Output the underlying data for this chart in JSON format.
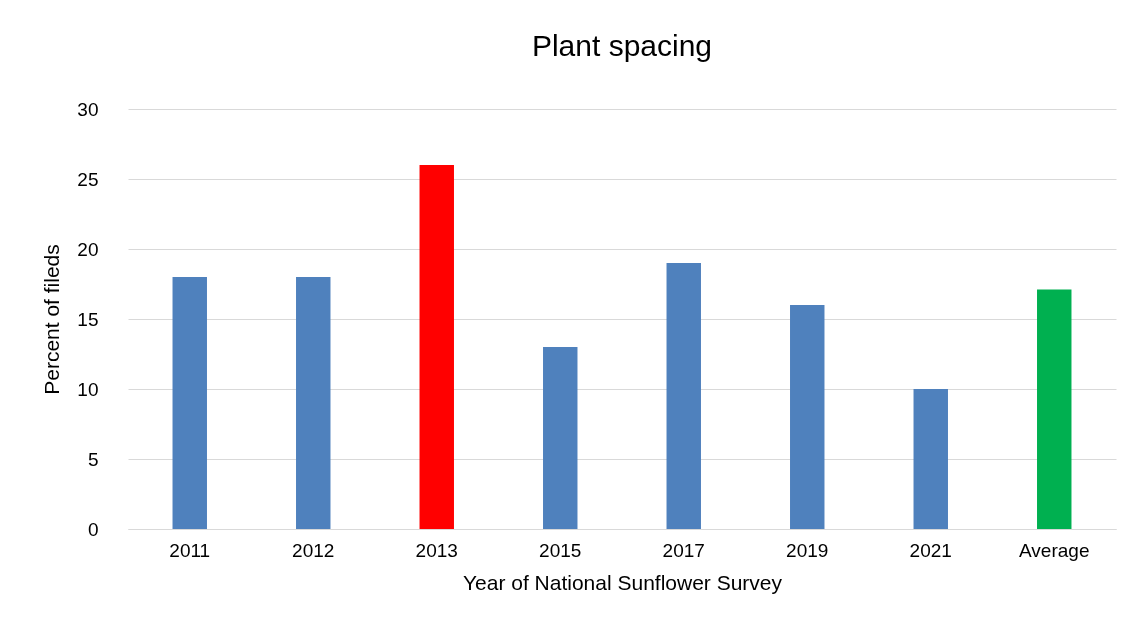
{
  "chart_data": {
    "type": "bar",
    "title": "Plant spacing",
    "xlabel": "Year of National Sunflower Survey",
    "ylabel": "Percent  of  fileds",
    "categories": [
      "2011",
      "2012",
      "2013",
      "2015",
      "2017",
      "2019",
      "2021",
      "Average"
    ],
    "values": [
      18,
      18,
      26,
      13,
      19,
      16,
      10,
      17.1
    ],
    "colors": [
      "#4f81bd",
      "#4f81bd",
      "#ff0000",
      "#4f81bd",
      "#4f81bd",
      "#4f81bd",
      "#4f81bd",
      "#00b050"
    ],
    "ylim": [
      0,
      30
    ],
    "yticks": [
      0,
      5,
      10,
      15,
      20,
      25,
      30
    ],
    "grid": "y",
    "legend": false
  }
}
